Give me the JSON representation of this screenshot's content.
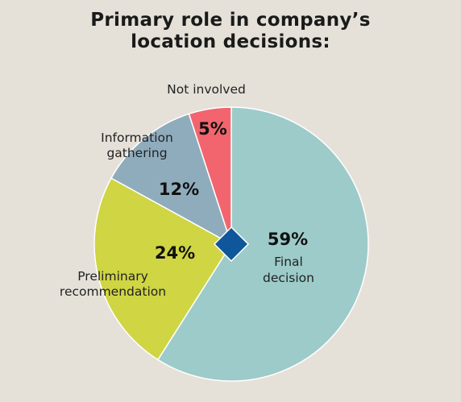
{
  "chart_data": {
    "type": "pie",
    "title_lines": [
      "Primary role in company’s",
      "location decisions:"
    ],
    "slices": [
      {
        "label_lines": [
          "Final",
          "decision"
        ],
        "value": 59,
        "value_label": "59%",
        "color": "#9ccbc9"
      },
      {
        "label_lines": [
          "Preliminary",
          "recommendation"
        ],
        "value": 24,
        "value_label": "24%",
        "color": "#cfd543"
      },
      {
        "label_lines": [
          "Information",
          "gathering"
        ],
        "value": 12,
        "value_label": "12%",
        "color": "#8facbc"
      },
      {
        "label_lines": [
          "Not involved"
        ],
        "value": 5,
        "value_label": "5%",
        "color": "#f2656e"
      }
    ],
    "center_marker_color": "#10569b"
  }
}
